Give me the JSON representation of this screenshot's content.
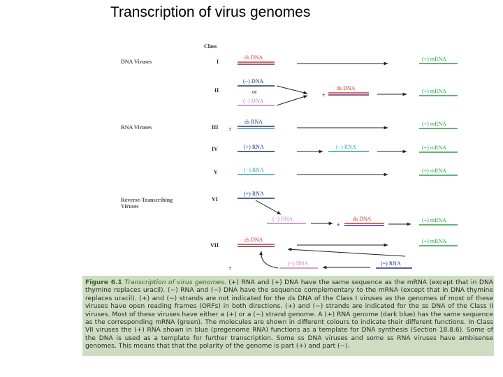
{
  "title": "Transcription of virus genomes",
  "diagram": {
    "class_header": "Class",
    "groups": {
      "dna_viruses": "DNA Viruses",
      "rna_viruses": "RNA Viruses",
      "rt_line1": "Reverse-Transcribing",
      "rt_line2": "Viruses"
    },
    "classes": [
      "I",
      "II",
      "III",
      "IV",
      "V",
      "VI",
      "VII"
    ],
    "strands": {
      "i_dsdna": "ds DNA",
      "ii_minus_dna": "(−) DNA",
      "ii_or": "or",
      "ii_minus_dna_alt": "(−) DNA",
      "ii_dsdna": "ds DNA",
      "iii_dsrna": "ds RNA",
      "iv_plus_rna": "(+) RNA",
      "iv_minus_rna": "(−) RNA",
      "v_minus_rna": "(−) RNA",
      "vi_plus_rna": "(+) RNA",
      "vi_minus_dna": "(−) DNA",
      "vi_dsdna": "ds DNA",
      "vii_dsdna": "ds DNA",
      "vii_minus_dna": "(−) DNA",
      "vii_plus_rna": "(+) RNA",
      "mrna": "(+) mRNA",
      "pm": "±"
    },
    "colors": {
      "mrna_green": "#2e9a4a",
      "dsdna_red": "#c0392b",
      "dsdna_purple": "#6a2a7a",
      "minus_cyan": "#2aa0b0",
      "plus_darkblue": "#1f2f7a",
      "minus_dna_pink": "#c080c0",
      "arrow": "#222222"
    }
  },
  "caption": {
    "figure_number": "Figure 6.1",
    "figure_title": "Transcription of virus genomes.",
    "body": "(+) RNA and (+) DNA have the same sequence as the mRNA (except that in DNA thymine replaces uracil). (−) RNA and (−) DNA have the sequence complementary to the mRNA (except that in DNA thymine replaces uracil). (+) and (−) strands are not indicated for the ds DNA of the Class I viruses as the genomes of most of these viruses have open reading frames (ORFs) in both directions. (+) and (−) strands are indicated for the ss DNA of the Class II viruses. Most of these viruses have either a (+) or a (−) strand genome. A (+) RNA genome (dark blue) has the same sequence as the corresponding mRNA (green). The molecules are shown in different colours to indicate their different functions. In Class VII viruses the (+) RNA shown in blue (pregenome RNA) functions as a template for DNA synthesis (Section 18.8.6). Some of the DNA is used as a template for further transcription. Some ss DNA viruses and some ss RNA viruses have ambisense genomes. This means that that the polarity of the genome is part (+) and part (−)."
  }
}
